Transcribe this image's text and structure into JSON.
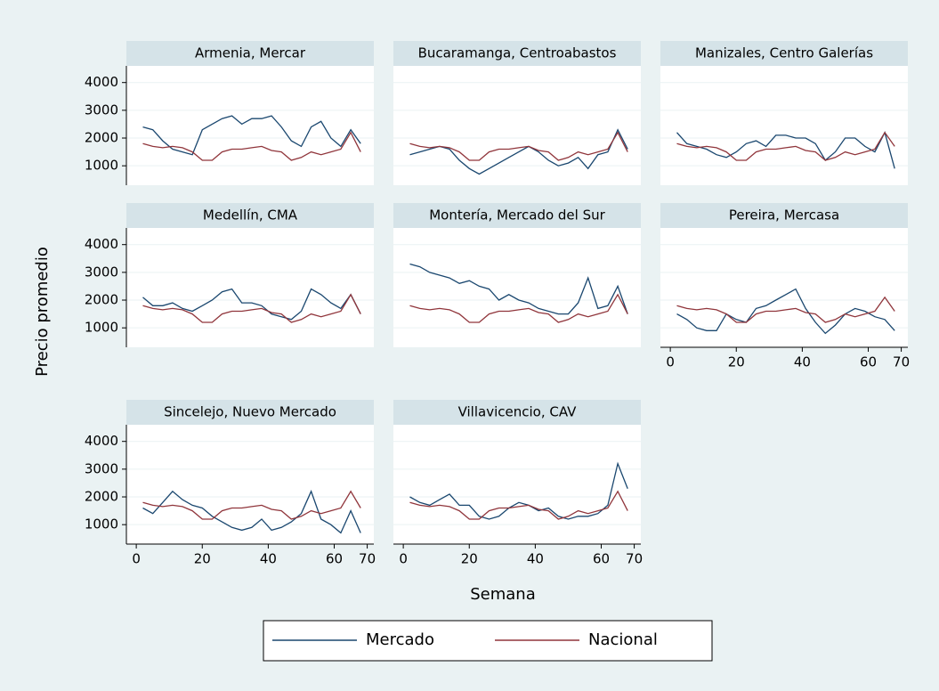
{
  "chart_data": {
    "type": "line",
    "xlabel": "Semana",
    "ylabel": "Precio promedio",
    "xlim": [
      -3,
      72
    ],
    "xticks": [
      0,
      20,
      40,
      60,
      70
    ],
    "ylim": [
      300,
      4600
    ],
    "yticks": [
      1000,
      2000,
      3000,
      4000
    ],
    "grid": true,
    "series": [
      {
        "name": "Mercado",
        "color": "#1a476f"
      },
      {
        "name": "Nacional",
        "color": "#90353b"
      }
    ],
    "x": [
      2,
      5,
      8,
      11,
      14,
      17,
      20,
      23,
      26,
      29,
      32,
      35,
      38,
      41,
      44,
      47,
      50,
      53,
      56,
      59,
      62,
      65,
      68
    ],
    "panels": [
      {
        "title": "Armenia, Mercar",
        "series": [
          {
            "values": [
              2400,
              2300,
              1900,
              1600,
              1500,
              1400,
              2300,
              2500,
              2700,
              2800,
              2500,
              2700,
              2700,
              2800,
              2400,
              1900,
              1700,
              2400,
              2600,
              2000,
              1700,
              2300,
              1800
            ]
          },
          {
            "values": [
              1800,
              1700,
              1650,
              1700,
              1650,
              1500,
              1200,
              1200,
              1500,
              1600,
              1600,
              1650,
              1700,
              1550,
              1500,
              1200,
              1300,
              1500,
              1400,
              1500,
              1600,
              2200,
              1500
            ]
          }
        ]
      },
      {
        "title": "Bucaramanga, Centroabastos",
        "series": [
          {
            "values": [
              1400,
              1500,
              1600,
              1700,
              1600,
              1200,
              900,
              700,
              900,
              1100,
              1300,
              1500,
              1700,
              1500,
              1200,
              1000,
              1100,
              1300,
              900,
              1400,
              1500,
              2300,
              1600
            ]
          },
          {
            "values": [
              1800,
              1700,
              1650,
              1700,
              1650,
              1500,
              1200,
              1200,
              1500,
              1600,
              1600,
              1650,
              1700,
              1550,
              1500,
              1200,
              1300,
              1500,
              1400,
              1500,
              1600,
              2200,
              1500
            ]
          }
        ]
      },
      {
        "title": "Manizales, Centro Galerías",
        "series": [
          {
            "values": [
              2200,
              1800,
              1700,
              1600,
              1400,
              1300,
              1500,
              1800,
              1900,
              1700,
              2100,
              2100,
              2000,
              2000,
              1800,
              1200,
              1500,
              2000,
              2000,
              1700,
              1500,
              2200,
              900
            ]
          },
          {
            "values": [
              1800,
              1700,
              1650,
              1700,
              1650,
              1500,
              1200,
              1200,
              1500,
              1600,
              1600,
              1650,
              1700,
              1550,
              1500,
              1200,
              1300,
              1500,
              1400,
              1500,
              1600,
              2200,
              1700
            ]
          }
        ]
      },
      {
        "title": "Medellín, CMA",
        "series": [
          {
            "values": [
              2100,
              1800,
              1800,
              1900,
              1700,
              1600,
              1800,
              2000,
              2300,
              2400,
              1900,
              1900,
              1800,
              1500,
              1400,
              1300,
              1600,
              2400,
              2200,
              1900,
              1700,
              2200,
              1500
            ]
          },
          {
            "values": [
              1800,
              1700,
              1650,
              1700,
              1650,
              1500,
              1200,
              1200,
              1500,
              1600,
              1600,
              1650,
              1700,
              1550,
              1500,
              1200,
              1300,
              1500,
              1400,
              1500,
              1600,
              2200,
              1500
            ]
          }
        ]
      },
      {
        "title": "Montería, Mercado del Sur",
        "series": [
          {
            "values": [
              3300,
              3200,
              3000,
              2900,
              2800,
              2600,
              2700,
              2500,
              2400,
              2000,
              2200,
              2000,
              1900,
              1700,
              1600,
              1500,
              1500,
              1900,
              2800,
              1700,
              1800,
              2500,
              1500
            ]
          },
          {
            "values": [
              1800,
              1700,
              1650,
              1700,
              1650,
              1500,
              1200,
              1200,
              1500,
              1600,
              1600,
              1650,
              1700,
              1550,
              1500,
              1200,
              1300,
              1500,
              1400,
              1500,
              1600,
              2200,
              1500
            ]
          }
        ]
      },
      {
        "title": "Pereira, Mercasa",
        "series": [
          {
            "values": [
              1500,
              1300,
              1000,
              900,
              900,
              1500,
              1300,
              1200,
              1700,
              1800,
              2000,
              2200,
              2400,
              1700,
              1200,
              800,
              1100,
              1500,
              1700,
              1600,
              1400,
              1300,
              900
            ]
          },
          {
            "values": [
              1800,
              1700,
              1650,
              1700,
              1650,
              1500,
              1200,
              1200,
              1500,
              1600,
              1600,
              1650,
              1700,
              1550,
              1500,
              1200,
              1300,
              1500,
              1400,
              1500,
              1600,
              2100,
              1600
            ]
          }
        ]
      },
      {
        "title": "Sincelejo, Nuevo Mercado",
        "series": [
          {
            "values": [
              1600,
              1400,
              1800,
              2200,
              1900,
              1700,
              1600,
              1300,
              1100,
              900,
              800,
              900,
              1200,
              800,
              900,
              1100,
              1400,
              2200,
              1200,
              1000,
              700,
              1500,
              700
            ]
          },
          {
            "values": [
              1800,
              1700,
              1650,
              1700,
              1650,
              1500,
              1200,
              1200,
              1500,
              1600,
              1600,
              1650,
              1700,
              1550,
              1500,
              1200,
              1300,
              1500,
              1400,
              1500,
              1600,
              2200,
              1600
            ]
          }
        ]
      },
      {
        "title": "Villavicencio, CAV",
        "series": [
          {
            "values": [
              2000,
              1800,
              1700,
              1900,
              2100,
              1700,
              1700,
              1300,
              1200,
              1300,
              1600,
              1800,
              1700,
              1500,
              1600,
              1300,
              1200,
              1300,
              1300,
              1400,
              1700,
              3200,
              2300
            ]
          },
          {
            "values": [
              1800,
              1700,
              1650,
              1700,
              1650,
              1500,
              1200,
              1200,
              1500,
              1600,
              1600,
              1650,
              1700,
              1550,
              1500,
              1200,
              1300,
              1500,
              1400,
              1500,
              1600,
              2200,
              1500
            ]
          }
        ]
      }
    ]
  }
}
